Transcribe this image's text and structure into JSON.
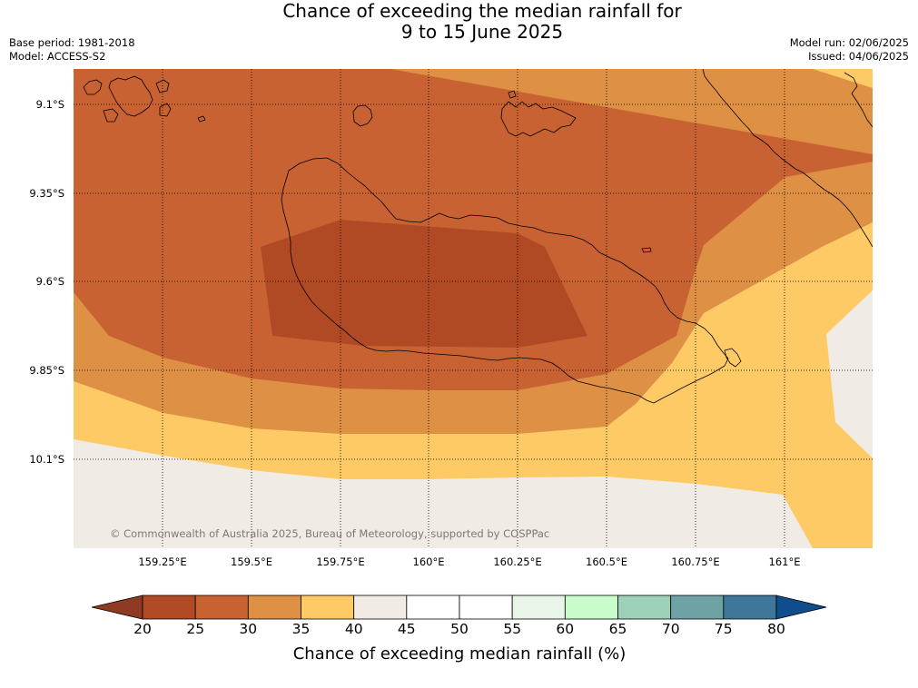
{
  "title": {
    "line1": "Chance of exceeding the median rainfall for",
    "line2": "9 to 15 June 2025"
  },
  "info": {
    "base_period": "Base period: 1981-2018",
    "model": "Model: ACCESS-S2",
    "model_run": "Model run: 02/06/2025",
    "issued": "Issued: 04/06/2025"
  },
  "map": {
    "lat_labels": [
      "9.1°S",
      "9.35°S",
      "9.6°S",
      "9.85°S",
      "10.1°S"
    ],
    "lon_labels": [
      "159.25°E",
      "159.5°E",
      "159.75°E",
      "160°E",
      "160.25°E",
      "160.5°E",
      "160.75°E",
      "161°E"
    ],
    "copyright": "© Commonwealth of Australia 2025, Bureau of Meteorology, supported by COSPPac",
    "gridlines": true,
    "coastline_color": "#000000",
    "gridline_color": "#000000"
  },
  "colorbar": {
    "label": "Chance of exceeding median rainfall (%)",
    "ticks": [
      20,
      25,
      30,
      35,
      40,
      45,
      50,
      55,
      60,
      65,
      70,
      75,
      80
    ],
    "colors": [
      "#b04a25",
      "#c86233",
      "#de9044",
      "#fdca65",
      "#f0ebe5",
      "#ffffff",
      "#ffffff",
      "#eaf5ea",
      "#c9fccb",
      "#9dd0b9",
      "#6ea2a4",
      "#3e7799"
    ],
    "extend_low_color": "#8f3a22",
    "extend_high_color": "#0f4d8c"
  }
}
